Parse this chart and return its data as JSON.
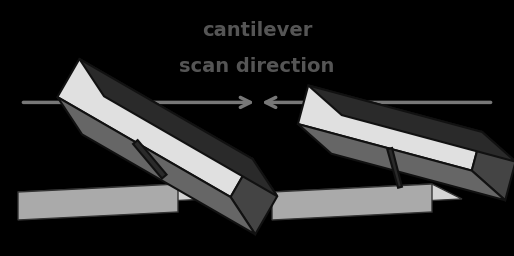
{
  "title_line1": "cantilever",
  "title_line2": "scan direction",
  "title_fontsize": 14,
  "title_fontweight": "bold",
  "title_color": "#555555",
  "bg_color": "#000000",
  "fig_bg": "#ffffff",
  "arrow_color": "#777777",
  "chip_dark": "#2a2a2a",
  "chip_light": "#e0e0e0",
  "chip_mid": "#666666",
  "chip_mid2": "#444444",
  "outline_color": "#111111",
  "surface_top": "#d4d4d4",
  "surface_side": "#aaaaaa",
  "surface_outline": "#333333"
}
